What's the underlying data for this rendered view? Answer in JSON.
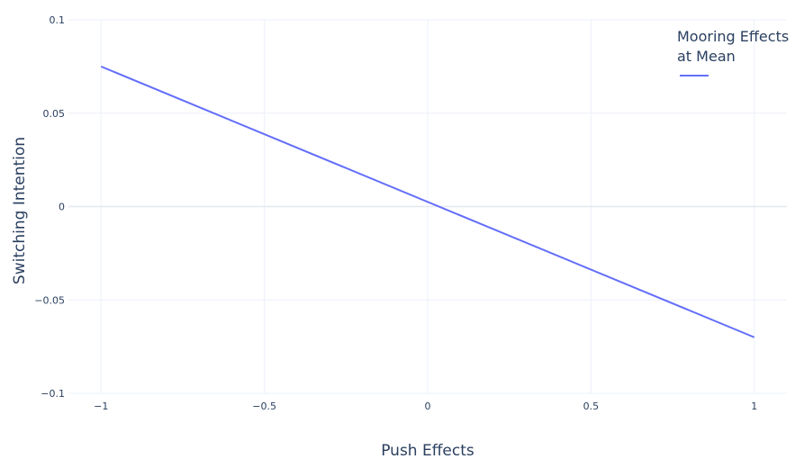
{
  "chart_data": {
    "type": "line",
    "xlabel": "Push Effects",
    "ylabel": "Switching Intention",
    "xlim": [
      -1.1,
      1.1
    ],
    "ylim": [
      -0.1,
      0.1
    ],
    "x_ticks": [
      -1,
      -0.5,
      0,
      0.5,
      1
    ],
    "x_tick_labels": [
      "−1",
      "−0.5",
      "0",
      "0.5",
      "1"
    ],
    "y_ticks": [
      0.1,
      0.05,
      0,
      -0.05,
      -0.1
    ],
    "y_tick_labels": [
      "0.1",
      "0.05",
      "0",
      "−0.05",
      "−0.1"
    ],
    "grid": true,
    "legend": {
      "title_lines": [
        "Mooring Effects",
        "at Mean"
      ],
      "placement": "top-right"
    },
    "series": [
      {
        "color": "#636efa",
        "x": [
          -1,
          1
        ],
        "y": [
          0.075,
          -0.07
        ]
      }
    ]
  }
}
